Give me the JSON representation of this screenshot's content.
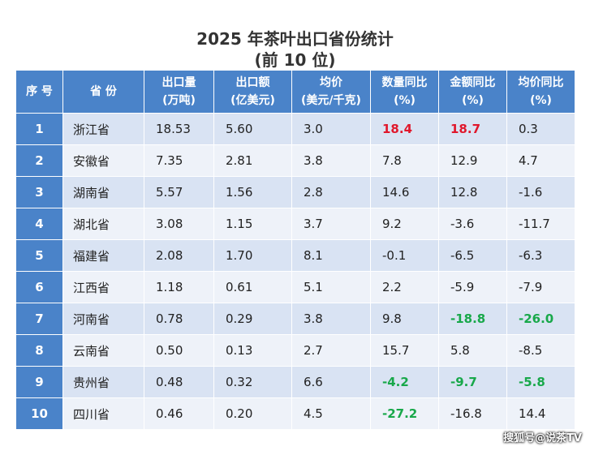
{
  "title_line1": "2025 年茶叶出口省份统计",
  "title_line2": "(前 10 位)",
  "headers": [
    {
      "line1": "序 号",
      "line2": ""
    },
    {
      "line1": "省 份",
      "line2": ""
    },
    {
      "line1": "出口量",
      "line2": "(万吨)"
    },
    {
      "line1": "出口额",
      "line2": "(亿美元)"
    },
    {
      "line1": "均价",
      "line2": "(美元/千克)"
    },
    {
      "line1": "数量同比",
      "line2": "(%)"
    },
    {
      "line1": "金额同比",
      "line2": "(%)"
    },
    {
      "line1": "均价同比",
      "line2": "(%)"
    }
  ],
  "rows": [
    {
      "rank": "1",
      "province": "浙江省",
      "volume": "18.53",
      "value": "5.60",
      "price": "3.0",
      "vol_yoy": "18.4",
      "val_yoy": "18.7",
      "price_yoy": "0.3"
    },
    {
      "rank": "2",
      "province": "安徽省",
      "volume": "7.35",
      "value": "2.81",
      "price": "3.8",
      "vol_yoy": "7.8",
      "val_yoy": "12.9",
      "price_yoy": "4.7"
    },
    {
      "rank": "3",
      "province": "湖南省",
      "volume": "5.57",
      "value": "1.56",
      "price": "2.8",
      "vol_yoy": "14.6",
      "val_yoy": "12.8",
      "price_yoy": "-1.6"
    },
    {
      "rank": "4",
      "province": "湖北省",
      "volume": "3.08",
      "value": "1.15",
      "price": "3.7",
      "vol_yoy": "9.2",
      "val_yoy": "-3.6",
      "price_yoy": "-11.7"
    },
    {
      "rank": "5",
      "province": "福建省",
      "volume": "2.08",
      "value": "1.70",
      "price": "8.1",
      "vol_yoy": "-0.1",
      "val_yoy": "-6.5",
      "price_yoy": "-6.3"
    },
    {
      "rank": "6",
      "province": "江西省",
      "volume": "1.18",
      "value": "0.61",
      "price": "5.1",
      "vol_yoy": "2.2",
      "val_yoy": "-5.9",
      "price_yoy": "-7.9"
    },
    {
      "rank": "7",
      "province": "河南省",
      "volume": "0.78",
      "value": "0.29",
      "price": "3.8",
      "vol_yoy": "9.8",
      "val_yoy": "-18.8",
      "price_yoy": "-26.0"
    },
    {
      "rank": "8",
      "province": "云南省",
      "volume": "0.50",
      "value": "0.13",
      "price": "2.7",
      "vol_yoy": "15.7",
      "val_yoy": "5.8",
      "price_yoy": "-8.5"
    },
    {
      "rank": "9",
      "province": "贵州省",
      "volume": "0.48",
      "value": "0.32",
      "price": "6.6",
      "vol_yoy": "-4.2",
      "val_yoy": "-9.7",
      "price_yoy": "-5.8"
    },
    {
      "rank": "10",
      "province": "四川省",
      "volume": "0.46",
      "value": "0.20",
      "price": "4.5",
      "vol_yoy": "-27.2",
      "val_yoy": "-16.8",
      "price_yoy": "14.4"
    }
  ],
  "highlights": {
    "red": [
      "0.vol_yoy",
      "0.val_yoy"
    ],
    "green": [
      "6.val_yoy",
      "6.price_yoy",
      "8.vol_yoy",
      "8.val_yoy",
      "8.price_yoy",
      "9.vol_yoy"
    ]
  },
  "colors": {
    "header_bg": "#4a83c9",
    "row_odd": "#d9e3f3",
    "row_even": "#eef2f9",
    "highlight_red": "#e0172b",
    "highlight_green": "#18a84a"
  },
  "watermark": "搜狐号@说茶TV"
}
